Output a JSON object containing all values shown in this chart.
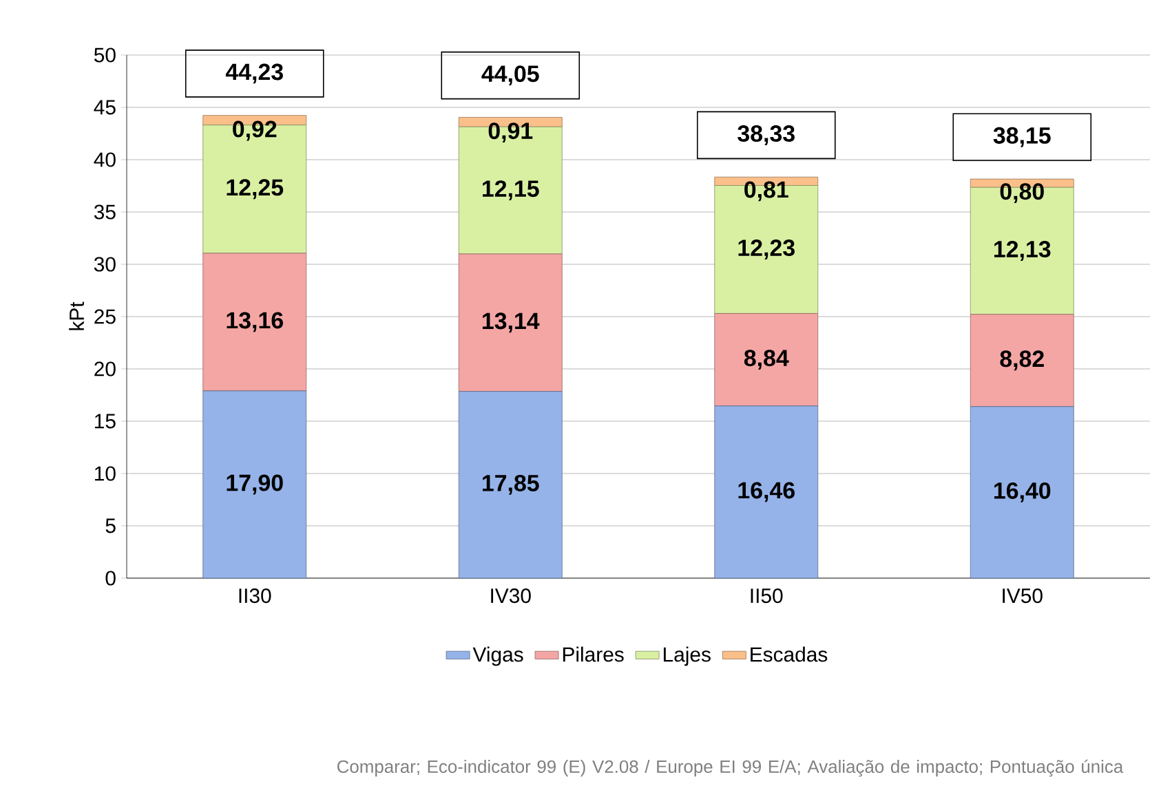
{
  "chart_data": {
    "type": "bar",
    "stacked": true,
    "ylabel": "kPt",
    "categories": [
      "II30",
      "IV30",
      "II50",
      "IV50"
    ],
    "series": [
      {
        "name": "Vigas",
        "color": "#95b3e8",
        "values": [
          17.9,
          17.85,
          16.46,
          16.4
        ],
        "value_labels": [
          "17,90",
          "17,85",
          "16,46",
          "16,40"
        ]
      },
      {
        "name": "Pilares",
        "color": "#f4a6a4",
        "values": [
          13.16,
          13.14,
          8.84,
          8.82
        ],
        "value_labels": [
          "13,16",
          "13,14",
          "8,84",
          "8,82"
        ]
      },
      {
        "name": "Lajes",
        "color": "#d9f0a3",
        "values": [
          12.25,
          12.15,
          12.23,
          12.13
        ],
        "value_labels": [
          "12,25",
          "12,15",
          "12,23",
          "12,13"
        ]
      },
      {
        "name": "Escadas",
        "color": "#fbbf8a",
        "values": [
          0.92,
          0.91,
          0.81,
          0.8
        ],
        "value_labels": [
          "0,92",
          "0,91",
          "0,81",
          "0,80"
        ]
      }
    ],
    "totals": [
      "44,23",
      "44,05",
      "38,33",
      "38,15"
    ],
    "ylim": [
      0,
      50
    ],
    "yticks": [
      0,
      5,
      10,
      15,
      20,
      25,
      30,
      35,
      40,
      45,
      50
    ],
    "grid": "y",
    "legend": "bottom",
    "annotations": [
      "Comparar; Eco-indicator 99 (E) V2.08 / Europe EI 99 E/A;  Avaliação de impacto; Pontuação única"
    ]
  }
}
